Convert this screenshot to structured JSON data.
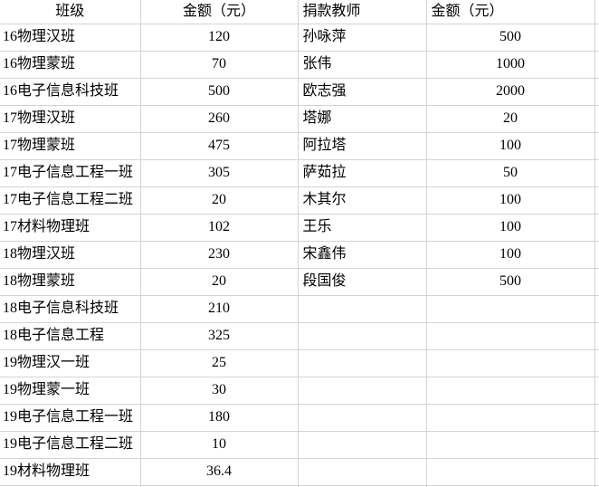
{
  "colors": {
    "gridline": "#d4d4d4",
    "background": "#ffffff",
    "text": "#000000"
  },
  "table": {
    "headers": {
      "class": "班级",
      "class_amount": "金额（元）",
      "teacher": "捐款教师",
      "teacher_amount": "金额（元）"
    },
    "rows": [
      [
        "16物理汉班",
        "120",
        "孙咏萍",
        "500"
      ],
      [
        "16物理蒙班",
        "70",
        "张伟",
        "1000"
      ],
      [
        "16电子信息科技班",
        "500",
        "欧志强",
        "2000"
      ],
      [
        "17物理汉班",
        "260",
        "塔娜",
        "20"
      ],
      [
        "17物理蒙班",
        "475",
        "阿拉塔",
        "100"
      ],
      [
        "17电子信息工程一班",
        "305",
        "萨茹拉",
        "50"
      ],
      [
        "17电子信息工程二班",
        "20",
        "木其尔",
        "100"
      ],
      [
        "17材料物理班",
        "102",
        "王乐",
        "100"
      ],
      [
        "18物理汉班",
        "230",
        "宋鑫伟",
        "100"
      ],
      [
        "18物理蒙班",
        "20",
        "段国俊",
        "500"
      ],
      [
        "18电子信息科技班",
        "210",
        "",
        ""
      ],
      [
        "18电子信息工程",
        "325",
        "",
        ""
      ],
      [
        "19物理汉一班",
        "25",
        "",
        ""
      ],
      [
        "19物理蒙一班",
        "30",
        "",
        ""
      ],
      [
        "19电子信息工程一班",
        "180",
        "",
        ""
      ],
      [
        "19电子信息工程二班",
        "10",
        "",
        ""
      ],
      [
        "19材料物理班",
        "36.4",
        "",
        ""
      ]
    ]
  }
}
